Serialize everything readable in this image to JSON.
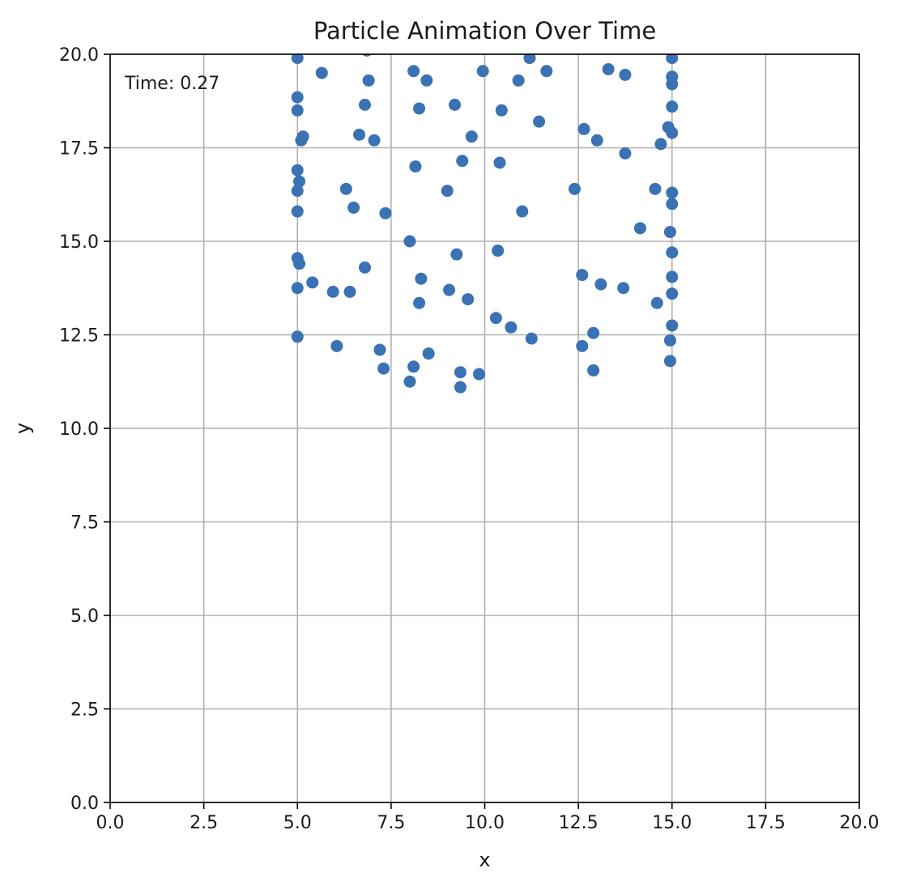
{
  "chart_data": {
    "type": "scatter",
    "title": "Particle Animation Over Time",
    "xlabel": "x",
    "ylabel": "y",
    "xlim": [
      0,
      20
    ],
    "ylim": [
      0,
      20
    ],
    "xticks": [
      "0.0",
      "2.5",
      "5.0",
      "7.5",
      "10.0",
      "12.5",
      "15.0",
      "17.5",
      "20.0"
    ],
    "yticks": [
      "0.0",
      "2.5",
      "5.0",
      "7.5",
      "10.0",
      "12.5",
      "15.0",
      "17.5",
      "20.0"
    ],
    "grid": true,
    "marker_color": "#3a72b4",
    "annotation": "Time: 0.27",
    "annotation_position": "top-left",
    "x": [
      5.0,
      5.65,
      6.9,
      8.1,
      8.45,
      9.95,
      10.9,
      11.2,
      11.65,
      13.3,
      13.75,
      15.0,
      5.0,
      6.8,
      8.25,
      9.2,
      10.45,
      11.45,
      12.65,
      13.0,
      13.75,
      14.7,
      14.9,
      15.0,
      15.0,
      15.0,
      15.0,
      5.0,
      5.1,
      5.15,
      6.65,
      7.05,
      9.65,
      5.0,
      5.05,
      5.0,
      6.3,
      6.5,
      7.35,
      8.15,
      9.0,
      9.4,
      10.4,
      11.0,
      12.4,
      14.15,
      14.55,
      15.0,
      15.0,
      5.0,
      5.05,
      5.4,
      5.0,
      5.0,
      5.95,
      6.4,
      6.8,
      8.0,
      8.3,
      8.25,
      9.05,
      9.25,
      9.55,
      10.35,
      12.6,
      13.1,
      13.7,
      14.6,
      14.95,
      15.0,
      15.0,
      5.0,
      6.05,
      7.2,
      7.3,
      8.0,
      8.1,
      8.5,
      9.35,
      9.35,
      9.85,
      10.3,
      10.7,
      11.25,
      12.6,
      12.9,
      12.9,
      14.95,
      14.95,
      15.0,
      15.0,
      6.85
    ],
    "y": [
      19.9,
      19.5,
      19.3,
      19.55,
      19.3,
      19.55,
      19.3,
      19.9,
      19.55,
      19.6,
      19.45,
      19.9,
      18.85,
      18.65,
      18.55,
      18.65,
      18.5,
      18.2,
      18.0,
      17.7,
      17.35,
      17.6,
      18.05,
      17.9,
      18.6,
      19.2,
      19.4,
      18.5,
      17.7,
      17.8,
      17.85,
      17.7,
      17.8,
      16.9,
      16.6,
      16.35,
      16.4,
      15.9,
      15.75,
      17.0,
      16.35,
      17.15,
      17.1,
      15.8,
      16.4,
      15.35,
      16.4,
      16.3,
      16.0,
      15.8,
      14.4,
      13.9,
      14.55,
      13.75,
      13.65,
      13.65,
      14.3,
      15.0,
      14.0,
      13.35,
      13.7,
      14.65,
      13.45,
      14.75,
      14.1,
      13.85,
      13.75,
      13.35,
      15.25,
      14.7,
      14.05,
      12.45,
      12.2,
      12.1,
      11.6,
      11.25,
      11.65,
      12.0,
      11.5,
      11.1,
      11.45,
      12.95,
      12.7,
      12.4,
      12.2,
      12.55,
      11.55,
      11.8,
      12.35,
      12.75,
      13.6,
      20.1
    ]
  }
}
